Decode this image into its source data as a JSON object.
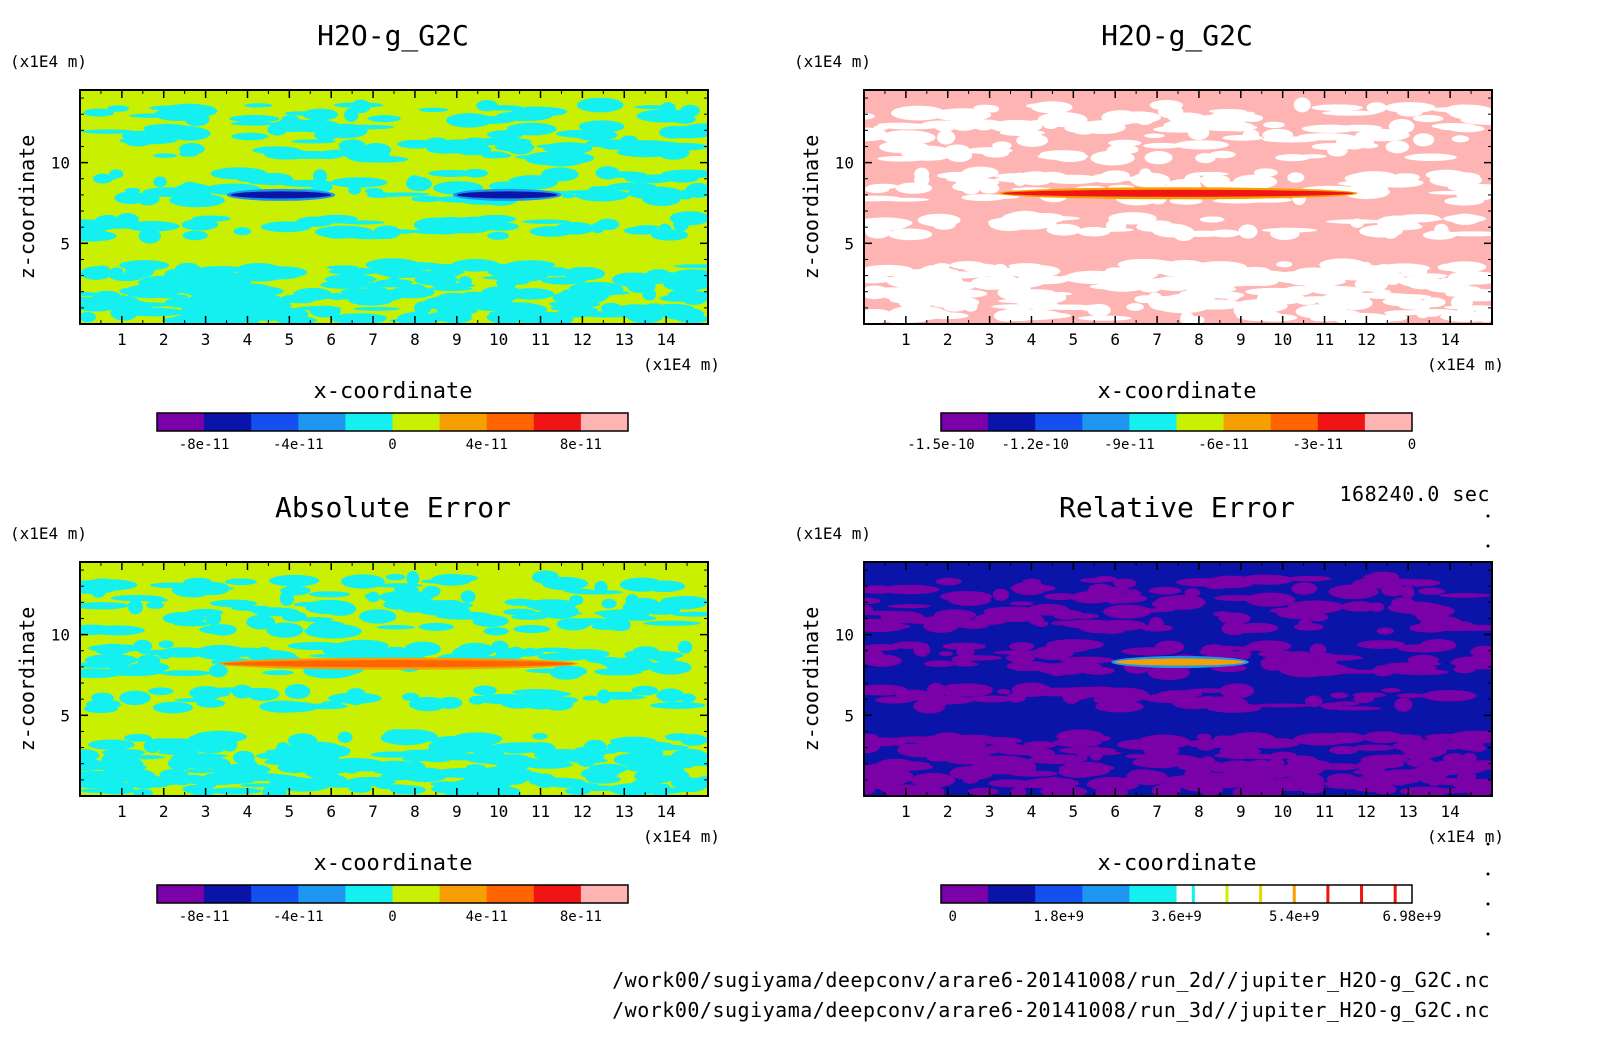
{
  "timestamp": "168240.0 sec",
  "file_paths": [
    "/work00/sugiyama/deepconv/arare6-20141008/run_2d//jupiter_H2O-g_G2C.nc",
    "/work00/sugiyama/deepconv/arare6-20141008/run_3d//jupiter_H2O-g_G2C.nc"
  ],
  "palette": [
    "#7a00a8",
    "#0a14a8",
    "#1450f0",
    "#1e96f0",
    "#14f0f0",
    "#c8f000",
    "#f5a000",
    "#ff6400",
    "#f01414",
    "#ffb4b4"
  ],
  "chart_data": [
    {
      "type": "heatmap",
      "title": "H2O-g_G2C",
      "xlabel": "x-coordinate",
      "ylabel": "z-coordinate",
      "x_unit": "(x1E4 m)",
      "y_unit": "(x1E4 m)",
      "xlim": [
        0,
        15
      ],
      "ylim": [
        0,
        14.5
      ],
      "xticks": [
        1,
        2,
        3,
        4,
        5,
        6,
        7,
        8,
        9,
        10,
        11,
        12,
        13,
        14
      ],
      "yticks": [
        5,
        10
      ],
      "background": "#c8f000",
      "noise_color": "#14f0f0",
      "features": [
        {
          "x0": 3.6,
          "x1": 6.0,
          "z": 8.0,
          "color": "#0a14a8",
          "fringe": "#1e96f0"
        },
        {
          "x0": 9.0,
          "x1": 11.4,
          "z": 8.0,
          "color": "#0a14a8",
          "fringe": "#1e96f0"
        }
      ],
      "colorbar": {
        "ticks": [
          "-8e-11",
          "-4e-11",
          "0",
          "4e-11",
          "8e-11"
        ],
        "range": [
          -1e-10,
          1e-10
        ],
        "levels": 10
      }
    },
    {
      "type": "heatmap",
      "title": "H2O-g_G2C",
      "xlabel": "x-coordinate",
      "ylabel": "z-coordinate",
      "x_unit": "(x1E4 m)",
      "y_unit": "(x1E4 m)",
      "xlim": [
        0,
        15
      ],
      "ylim": [
        0,
        14.5
      ],
      "xticks": [
        1,
        2,
        3,
        4,
        5,
        6,
        7,
        8,
        9,
        10,
        11,
        12,
        13,
        14
      ],
      "yticks": [
        5,
        10
      ],
      "background": "#ffb4b4",
      "noise_color": "#ffffff",
      "features": [
        {
          "x0": 3.3,
          "x1": 11.7,
          "z": 8.1,
          "color": "#f01414",
          "fringe": "#f5a000"
        }
      ],
      "colorbar": {
        "ticks": [
          "-1.5e-10",
          "-1.2e-10",
          "-9e-11",
          "-6e-11",
          "-3e-11",
          "0"
        ],
        "range": [
          -1.5e-10,
          0
        ],
        "levels": 10
      }
    },
    {
      "type": "heatmap",
      "title": "Absolute Error",
      "xlabel": "x-coordinate",
      "ylabel": "z-coordinate",
      "x_unit": "(x1E4 m)",
      "y_unit": "(x1E4 m)",
      "xlim": [
        0,
        15
      ],
      "ylim": [
        0,
        14.5
      ],
      "xticks": [
        1,
        2,
        3,
        4,
        5,
        6,
        7,
        8,
        9,
        10,
        11,
        12,
        13,
        14
      ],
      "yticks": [
        5,
        10
      ],
      "background": "#c8f000",
      "noise_color": "#14f0f0",
      "features": [
        {
          "x0": 3.4,
          "x1": 11.8,
          "z": 8.2,
          "color": "#ff6400",
          "fringe": "#f5a000"
        }
      ],
      "colorbar": {
        "ticks": [
          "-8e-11",
          "-4e-11",
          "0",
          "4e-11",
          "8e-11"
        ],
        "range": [
          -1e-10,
          1e-10
        ],
        "levels": 10
      }
    },
    {
      "type": "heatmap",
      "title": "Relative Error",
      "xlabel": "x-coordinate",
      "ylabel": "z-coordinate",
      "x_unit": "(x1E4 m)",
      "y_unit": "(x1E4 m)",
      "xlim": [
        0,
        15
      ],
      "ylim": [
        0,
        14.5
      ],
      "xticks": [
        1,
        2,
        3,
        4,
        5,
        6,
        7,
        8,
        9,
        10,
        11,
        12,
        13,
        14
      ],
      "yticks": [
        5,
        10
      ],
      "background": "#0a14a8",
      "noise_color": "#7a00a8",
      "features": [
        {
          "x0": 6.0,
          "x1": 9.1,
          "z": 8.3,
          "color": "#f5a000",
          "fringe": "#1e96f0"
        }
      ],
      "colorbar": {
        "ticks": [
          "0",
          "1.8e+9",
          "3.6e+9",
          "5.4e+9",
          "6.98e+9"
        ],
        "range": [
          0,
          6980000000.0
        ],
        "levels": 10,
        "fill_levels": 5,
        "line_colors": [
          "#14f0f0",
          "#c8f000",
          "#f5d000",
          "#f5a000",
          "#f01414",
          "#f01414",
          "#f01414"
        ]
      }
    }
  ]
}
